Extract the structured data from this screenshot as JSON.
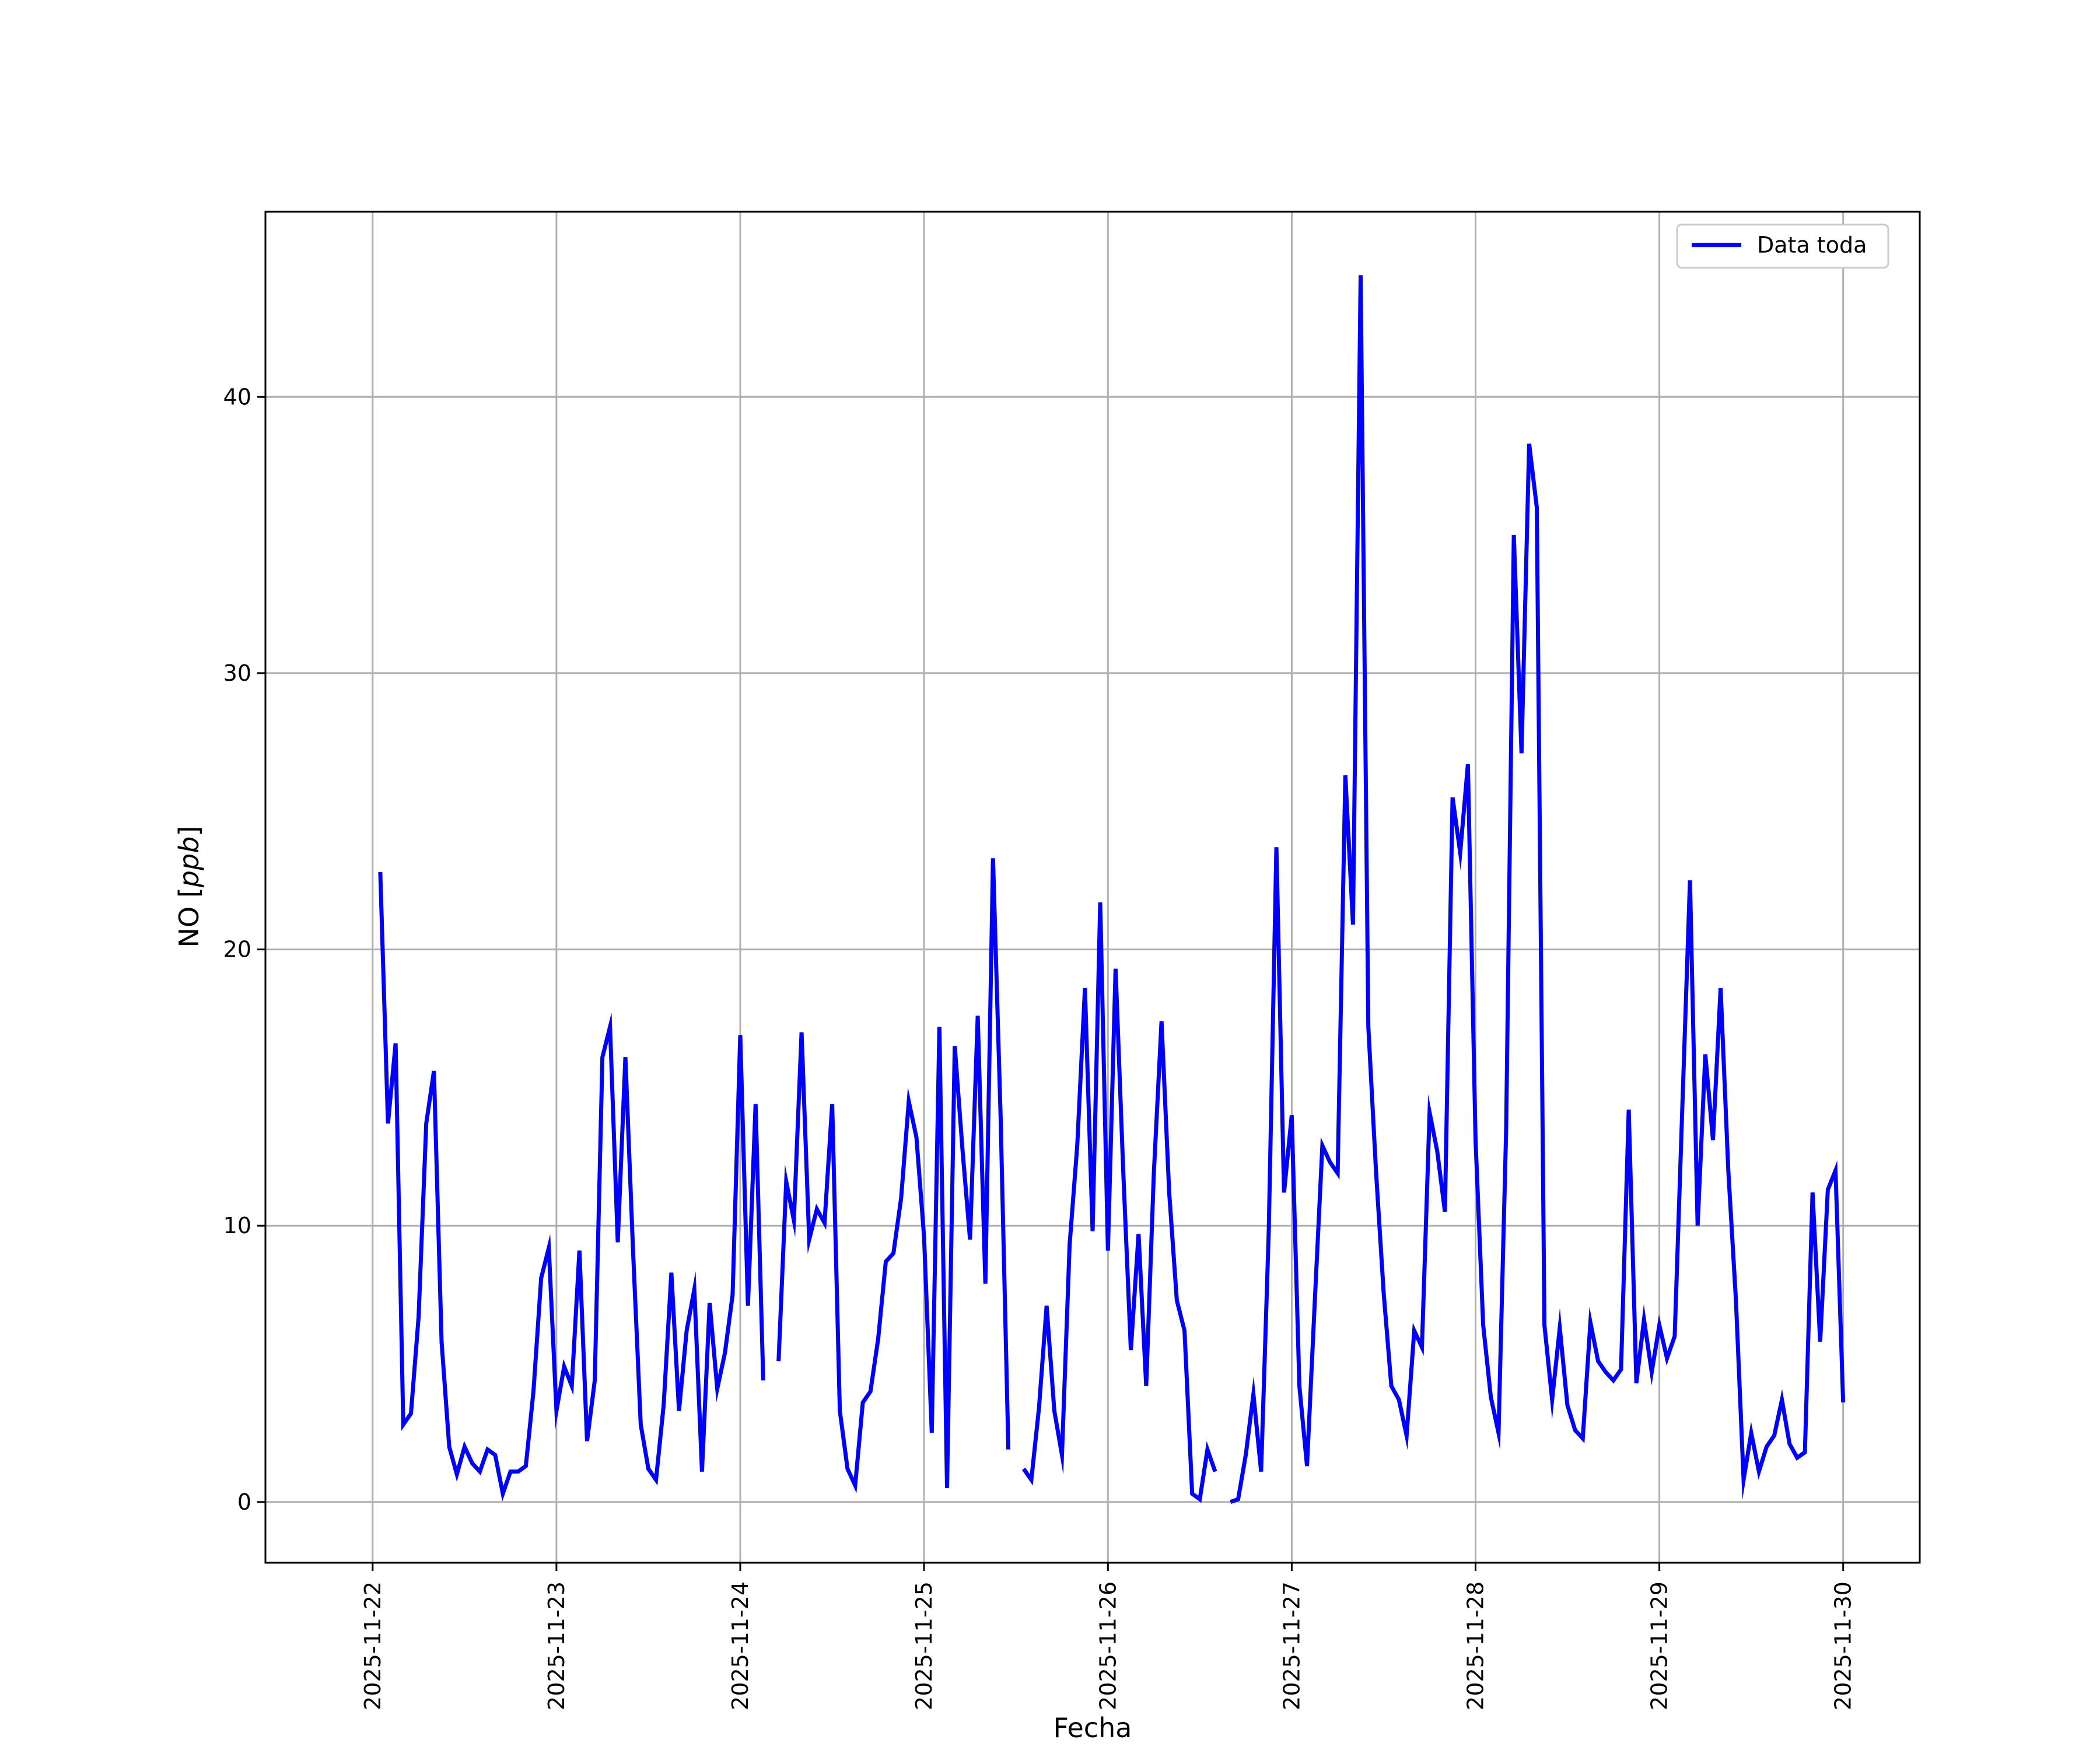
{
  "chart_data": {
    "type": "line",
    "title": "",
    "xlabel": "Fecha",
    "ylabel_main": "NO [",
    "ylabel_unit": "ppb",
    "ylabel_close": "]",
    "x_axis_type": "date",
    "x_ticks": [
      "2025-11-22",
      "2025-11-23",
      "2025-11-24",
      "2025-11-25",
      "2025-11-26",
      "2025-11-27",
      "2025-11-28",
      "2025-11-29",
      "2025-11-30"
    ],
    "y_ticks": [
      0,
      10,
      20,
      30,
      40
    ],
    "xlim": [
      "2025-11-21T10:00",
      "2025-11-30T10:00"
    ],
    "ylim": [
      -2.2,
      46.7
    ],
    "grid": true,
    "legend_position": "top-right",
    "series": [
      {
        "name": "Data toda",
        "color": "#0000ff",
        "points": [
          [
            "2025-11-22T01:00",
            22.8
          ],
          [
            "2025-11-22T02:00",
            13.7
          ],
          [
            "2025-11-22T03:00",
            16.6
          ],
          [
            "2025-11-22T04:00",
            2.8
          ],
          [
            "2025-11-22T05:00",
            3.2
          ],
          [
            "2025-11-22T06:00",
            6.7
          ],
          [
            "2025-11-22T07:00",
            13.7
          ],
          [
            "2025-11-22T08:00",
            15.6
          ],
          [
            "2025-11-22T09:00",
            5.8
          ],
          [
            "2025-11-22T10:00",
            2.0
          ],
          [
            "2025-11-22T11:00",
            1.0
          ],
          [
            "2025-11-22T12:00",
            2.0
          ],
          [
            "2025-11-22T13:00",
            1.4
          ],
          [
            "2025-11-22T14:00",
            1.1
          ],
          [
            "2025-11-22T15:00",
            1.9
          ],
          [
            "2025-11-22T16:00",
            1.7
          ],
          [
            "2025-11-22T17:00",
            0.3
          ],
          [
            "2025-11-22T18:00",
            1.1
          ],
          [
            "2025-11-22T19:00",
            1.1
          ],
          [
            "2025-11-22T20:00",
            1.3
          ],
          [
            "2025-11-22T21:00",
            4.0
          ],
          [
            "2025-11-22T22:00",
            8.1
          ],
          [
            "2025-11-22T23:00",
            9.2
          ],
          [
            "2025-11-23T00:00",
            3.3
          ],
          [
            "2025-11-23T01:00",
            4.9
          ],
          [
            "2025-11-23T02:00",
            4.2
          ],
          [
            "2025-11-23T03:00",
            9.1
          ],
          [
            "2025-11-23T04:00",
            2.2
          ],
          [
            "2025-11-23T05:00",
            4.4
          ],
          [
            "2025-11-23T06:00",
            16.1
          ],
          [
            "2025-11-23T07:00",
            17.2
          ],
          [
            "2025-11-23T08:00",
            9.4
          ],
          [
            "2025-11-23T09:00",
            16.1
          ],
          [
            "2025-11-23T10:00",
            9.1
          ],
          [
            "2025-11-23T11:00",
            2.8
          ],
          [
            "2025-11-23T12:00",
            1.2
          ],
          [
            "2025-11-23T13:00",
            0.8
          ],
          [
            "2025-11-23T14:00",
            3.5
          ],
          [
            "2025-11-23T15:00",
            8.3
          ],
          [
            "2025-11-23T16:00",
            3.3
          ],
          [
            "2025-11-23T17:00",
            6.2
          ],
          [
            "2025-11-23T18:00",
            7.7
          ],
          [
            "2025-11-23T19:00",
            1.1
          ],
          [
            "2025-11-23T20:00",
            7.2
          ],
          [
            "2025-11-23T21:00",
            4.1
          ],
          [
            "2025-11-23T22:00",
            5.4
          ],
          [
            "2025-11-23T23:00",
            7.5
          ],
          [
            "2025-11-24T00:00",
            16.9
          ],
          [
            "2025-11-24T01:00",
            7.1
          ],
          [
            "2025-11-24T02:00",
            14.4
          ],
          [
            "2025-11-24T03:00",
            4.4
          ],
          [
            "2025-11-24T04:00",
            null
          ],
          [
            "2025-11-24T05:00",
            5.1
          ],
          [
            "2025-11-24T06:00",
            11.6
          ],
          [
            "2025-11-24T07:00",
            10.2
          ],
          [
            "2025-11-24T08:00",
            17.0
          ],
          [
            "2025-11-24T09:00",
            9.5
          ],
          [
            "2025-11-24T10:00",
            10.6
          ],
          [
            "2025-11-24T11:00",
            10.1
          ],
          [
            "2025-11-24T12:00",
            14.4
          ],
          [
            "2025-11-24T13:00",
            3.3
          ],
          [
            "2025-11-24T14:00",
            1.2
          ],
          [
            "2025-11-24T15:00",
            0.6
          ],
          [
            "2025-11-24T16:00",
            3.6
          ],
          [
            "2025-11-24T17:00",
            4.0
          ],
          [
            "2025-11-24T18:00",
            5.9
          ],
          [
            "2025-11-24T19:00",
            8.7
          ],
          [
            "2025-11-24T20:00",
            9.0
          ],
          [
            "2025-11-24T21:00",
            11.0
          ],
          [
            "2025-11-24T22:00",
            14.5
          ],
          [
            "2025-11-24T23:00",
            13.2
          ],
          [
            "2025-11-25T00:00",
            9.6
          ],
          [
            "2025-11-25T01:00",
            2.5
          ],
          [
            "2025-11-25T02:00",
            17.2
          ],
          [
            "2025-11-25T03:00",
            0.5
          ],
          [
            "2025-11-25T04:00",
            16.5
          ],
          [
            "2025-11-25T05:00",
            12.8
          ],
          [
            "2025-11-25T06:00",
            9.5
          ],
          [
            "2025-11-25T07:00",
            17.6
          ],
          [
            "2025-11-25T08:00",
            7.9
          ],
          [
            "2025-11-25T09:00",
            23.3
          ],
          [
            "2025-11-25T10:00",
            13.9
          ],
          [
            "2025-11-25T11:00",
            1.9
          ],
          [
            "2025-11-25T12:00",
            null
          ],
          [
            "2025-11-25T13:00",
            1.2
          ],
          [
            "2025-11-25T14:00",
            0.8
          ],
          [
            "2025-11-25T15:00",
            3.4
          ],
          [
            "2025-11-25T16:00",
            7.1
          ],
          [
            "2025-11-25T17:00",
            3.3
          ],
          [
            "2025-11-25T18:00",
            1.7
          ],
          [
            "2025-11-25T19:00",
            9.3
          ],
          [
            "2025-11-25T20:00",
            12.9
          ],
          [
            "2025-11-25T21:00",
            18.6
          ],
          [
            "2025-11-25T22:00",
            9.8
          ],
          [
            "2025-11-25T23:00",
            21.7
          ],
          [
            "2025-11-26T00:00",
            9.1
          ],
          [
            "2025-11-26T01:00",
            19.3
          ],
          [
            "2025-11-26T02:00",
            12.0
          ],
          [
            "2025-11-26T03:00",
            5.5
          ],
          [
            "2025-11-26T04:00",
            9.7
          ],
          [
            "2025-11-26T05:00",
            4.2
          ],
          [
            "2025-11-26T06:00",
            11.9
          ],
          [
            "2025-11-26T07:00",
            17.4
          ],
          [
            "2025-11-26T08:00",
            11.2
          ],
          [
            "2025-11-26T09:00",
            7.3
          ],
          [
            "2025-11-26T10:00",
            6.2
          ],
          [
            "2025-11-26T11:00",
            0.3
          ],
          [
            "2025-11-26T12:00",
            0.1
          ],
          [
            "2025-11-26T13:00",
            1.9
          ],
          [
            "2025-11-26T14:00",
            1.1
          ],
          [
            "2025-11-26T15:00",
            null
          ],
          [
            "2025-11-26T16:00",
            0.0
          ],
          [
            "2025-11-26T17:00",
            0.1
          ],
          [
            "2025-11-26T18:00",
            1.7
          ],
          [
            "2025-11-26T19:00",
            3.9
          ],
          [
            "2025-11-26T20:00",
            1.1
          ],
          [
            "2025-11-26T21:00",
            9.8
          ],
          [
            "2025-11-26T22:00",
            23.7
          ],
          [
            "2025-11-26T23:00",
            11.2
          ],
          [
            "2025-11-27T00:00",
            14.0
          ],
          [
            "2025-11-27T01:00",
            4.2
          ],
          [
            "2025-11-27T02:00",
            1.3
          ],
          [
            "2025-11-27T03:00",
            7.2
          ],
          [
            "2025-11-27T04:00",
            12.9
          ],
          [
            "2025-11-27T05:00",
            12.3
          ],
          [
            "2025-11-27T06:00",
            11.9
          ],
          [
            "2025-11-27T07:00",
            26.3
          ],
          [
            "2025-11-27T08:00",
            20.9
          ],
          [
            "2025-11-27T09:00",
            44.4
          ],
          [
            "2025-11-27T10:00",
            17.2
          ],
          [
            "2025-11-27T11:00",
            12.0
          ],
          [
            "2025-11-27T12:00",
            7.6
          ],
          [
            "2025-11-27T13:00",
            4.2
          ],
          [
            "2025-11-27T14:00",
            3.7
          ],
          [
            "2025-11-27T15:00",
            2.4
          ],
          [
            "2025-11-27T16:00",
            6.2
          ],
          [
            "2025-11-27T17:00",
            5.6
          ],
          [
            "2025-11-27T18:00",
            14.1
          ],
          [
            "2025-11-27T19:00",
            12.7
          ],
          [
            "2025-11-27T20:00",
            10.5
          ],
          [
            "2025-11-27T21:00",
            25.5
          ],
          [
            "2025-11-27T22:00",
            23.5
          ],
          [
            "2025-11-27T23:00",
            26.7
          ],
          [
            "2025-11-28T00:00",
            13.1
          ],
          [
            "2025-11-28T01:00",
            6.4
          ],
          [
            "2025-11-28T02:00",
            3.8
          ],
          [
            "2025-11-28T03:00",
            2.5
          ],
          [
            "2025-11-28T04:00",
            13.5
          ],
          [
            "2025-11-28T05:00",
            35.0
          ],
          [
            "2025-11-28T06:00",
            27.1
          ],
          [
            "2025-11-28T07:00",
            38.3
          ],
          [
            "2025-11-28T08:00",
            36.0
          ],
          [
            "2025-11-28T09:00",
            6.4
          ],
          [
            "2025-11-28T10:00",
            3.7
          ],
          [
            "2025-11-28T11:00",
            6.3
          ],
          [
            "2025-11-28T12:00",
            3.5
          ],
          [
            "2025-11-28T13:00",
            2.6
          ],
          [
            "2025-11-28T14:00",
            2.3
          ],
          [
            "2025-11-28T15:00",
            6.5
          ],
          [
            "2025-11-28T16:00",
            5.1
          ],
          [
            "2025-11-28T17:00",
            4.7
          ],
          [
            "2025-11-28T18:00",
            4.4
          ],
          [
            "2025-11-28T19:00",
            4.8
          ],
          [
            "2025-11-28T20:00",
            14.2
          ],
          [
            "2025-11-28T21:00",
            4.3
          ],
          [
            "2025-11-28T22:00",
            6.6
          ],
          [
            "2025-11-28T23:00",
            4.7
          ],
          [
            "2025-11-29T00:00",
            6.4
          ],
          [
            "2025-11-29T01:00",
            5.2
          ],
          [
            "2025-11-29T02:00",
            6.0
          ],
          [
            "2025-11-29T03:00",
            14.3
          ],
          [
            "2025-11-29T04:00",
            22.5
          ],
          [
            "2025-11-29T05:00",
            10.0
          ],
          [
            "2025-11-29T06:00",
            16.2
          ],
          [
            "2025-11-29T07:00",
            13.1
          ],
          [
            "2025-11-29T08:00",
            18.6
          ],
          [
            "2025-11-29T09:00",
            12.0
          ],
          [
            "2025-11-29T10:00",
            7.3
          ],
          [
            "2025-11-29T11:00",
            0.8
          ],
          [
            "2025-11-29T12:00",
            2.5
          ],
          [
            "2025-11-29T13:00",
            1.1
          ],
          [
            "2025-11-29T14:00",
            2.0
          ],
          [
            "2025-11-29T15:00",
            2.4
          ],
          [
            "2025-11-29T16:00",
            3.7
          ],
          [
            "2025-11-29T17:00",
            2.1
          ],
          [
            "2025-11-29T18:00",
            1.6
          ],
          [
            "2025-11-29T19:00",
            1.8
          ],
          [
            "2025-11-29T20:00",
            11.2
          ],
          [
            "2025-11-29T21:00",
            5.8
          ],
          [
            "2025-11-29T22:00",
            11.3
          ],
          [
            "2025-11-29T23:00",
            12.0
          ],
          [
            "2025-11-30T00:00",
            3.6
          ]
        ]
      }
    ]
  }
}
